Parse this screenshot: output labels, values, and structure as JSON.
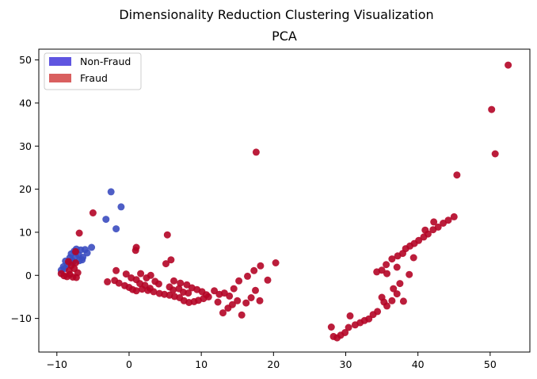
{
  "figure": {
    "suptitle": "Dimensionality Reduction Clustering Visualization"
  },
  "chart_data": {
    "type": "scatter",
    "title": "PCA",
    "xlabel": "",
    "ylabel": "",
    "xlim": [
      -12.5,
      55.5
    ],
    "ylim": [
      -17.8,
      52.5
    ],
    "xticks": [
      -10,
      0,
      10,
      20,
      30,
      40,
      50
    ],
    "yticks": [
      -10,
      0,
      10,
      20,
      30,
      40,
      50
    ],
    "grid": false,
    "legend": {
      "placement": "top-left"
    },
    "series": [
      {
        "name": "Non-Fraud",
        "color": "#3b4cc0",
        "legend_color": "#5f55e0",
        "points": [
          [
            -9.4,
            1.2
          ],
          [
            -9.1,
            2.0
          ],
          [
            -8.8,
            3.3
          ],
          [
            -8.5,
            2.6
          ],
          [
            -8.2,
            4.1
          ],
          [
            -7.9,
            3.5
          ],
          [
            -7.6,
            5.6
          ],
          [
            -7.3,
            6.1
          ],
          [
            -7.0,
            4.8
          ],
          [
            -6.7,
            5.9
          ],
          [
            -6.4,
            4.2
          ],
          [
            -6.1,
            6.0
          ],
          [
            -5.8,
            5.2
          ],
          [
            -6.5,
            3.6
          ],
          [
            -7.4,
            4.4
          ],
          [
            -8.0,
            5.0
          ],
          [
            -7.8,
            3.0
          ],
          [
            -8.9,
            1.6
          ],
          [
            -5.2,
            6.5
          ],
          [
            -6.9,
            3.4
          ],
          [
            -3.2,
            13.0
          ],
          [
            -2.5,
            19.4
          ],
          [
            -1.1,
            15.9
          ],
          [
            -1.8,
            10.8
          ]
        ]
      },
      {
        "name": "Fraud",
        "color": "#b40426",
        "legend_color": "#d95f5f",
        "points": [
          [
            52.5,
            48.8
          ],
          [
            50.2,
            38.5
          ],
          [
            50.7,
            28.2
          ],
          [
            17.6,
            28.6
          ],
          [
            45.4,
            23.3
          ],
          [
            -5.0,
            14.5
          ],
          [
            -6.9,
            9.8
          ],
          [
            5.3,
            9.4
          ],
          [
            -7.4,
            5.5
          ],
          [
            -9.4,
            0.4
          ],
          [
            -9.0,
            -0.1
          ],
          [
            -8.6,
            -0.3
          ],
          [
            -8.2,
            0.2
          ],
          [
            -7.8,
            -0.4
          ],
          [
            -7.3,
            -0.5
          ],
          [
            -8.3,
            1.1
          ],
          [
            -7.6,
            1.6
          ],
          [
            -8.0,
            2.3
          ],
          [
            -7.4,
            2.9
          ],
          [
            -8.4,
            3.2
          ],
          [
            -7.1,
            0.6
          ],
          [
            -3.0,
            -1.5
          ],
          [
            -2.0,
            -1.2
          ],
          [
            -1.4,
            -1.8
          ],
          [
            -0.6,
            -2.4
          ],
          [
            0.0,
            -2.8
          ],
          [
            0.5,
            -3.3
          ],
          [
            1.0,
            -3.6
          ],
          [
            -1.8,
            1.1
          ],
          [
            -0.4,
            0.3
          ],
          [
            0.3,
            -0.6
          ],
          [
            1.0,
            -1.0
          ],
          [
            1.5,
            -1.9
          ],
          [
            2.2,
            -2.3
          ],
          [
            2.9,
            -3.0
          ],
          [
            0.9,
            5.8
          ],
          [
            1.0,
            6.5
          ],
          [
            1.6,
            0.4
          ],
          [
            2.4,
            -0.6
          ],
          [
            3.0,
            0.0
          ],
          [
            3.6,
            -1.4
          ],
          [
            4.1,
            -2.0
          ],
          [
            1.8,
            -3.2
          ],
          [
            2.6,
            -3.5
          ],
          [
            3.4,
            -3.8
          ],
          [
            4.2,
            -4.2
          ],
          [
            4.9,
            -4.4
          ],
          [
            5.6,
            -4.6
          ],
          [
            6.3,
            -4.9
          ],
          [
            5.1,
            2.7
          ],
          [
            5.8,
            3.6
          ],
          [
            5.6,
            -2.7
          ],
          [
            6.1,
            -3.4
          ],
          [
            6.9,
            -3.1
          ],
          [
            7.5,
            -3.9
          ],
          [
            8.2,
            -4.1
          ],
          [
            6.2,
            -1.3
          ],
          [
            7.1,
            -1.8
          ],
          [
            8.0,
            -2.2
          ],
          [
            8.7,
            -2.9
          ],
          [
            9.4,
            -3.3
          ],
          [
            10.1,
            -3.8
          ],
          [
            10.7,
            -4.5
          ],
          [
            7.0,
            -5.2
          ],
          [
            7.6,
            -5.9
          ],
          [
            8.3,
            -6.3
          ],
          [
            9.0,
            -6.1
          ],
          [
            9.6,
            -5.8
          ],
          [
            10.3,
            -5.4
          ],
          [
            11.0,
            -5.0
          ],
          [
            11.8,
            -3.6
          ],
          [
            12.5,
            -4.4
          ],
          [
            13.2,
            -4.1
          ],
          [
            13.9,
            -4.8
          ],
          [
            14.5,
            -3.1
          ],
          [
            15.2,
            -1.3
          ],
          [
            12.3,
            -6.2
          ],
          [
            13.0,
            -8.7
          ],
          [
            13.7,
            -7.6
          ],
          [
            14.3,
            -6.8
          ],
          [
            15.0,
            -5.9
          ],
          [
            15.6,
            -9.2
          ],
          [
            16.2,
            -6.4
          ],
          [
            16.9,
            -5.2
          ],
          [
            17.5,
            -3.5
          ],
          [
            18.1,
            -5.9
          ],
          [
            16.4,
            -0.2
          ],
          [
            17.3,
            1.1
          ],
          [
            18.2,
            2.2
          ],
          [
            20.3,
            2.9
          ],
          [
            19.2,
            -1.1
          ],
          [
            28.0,
            -12.0
          ],
          [
            28.3,
            -14.2
          ],
          [
            28.8,
            -14.5
          ],
          [
            29.3,
            -13.9
          ],
          [
            29.9,
            -13.3
          ],
          [
            30.4,
            -12.1
          ],
          [
            30.6,
            -9.4
          ],
          [
            31.3,
            -11.5
          ],
          [
            32.0,
            -11.0
          ],
          [
            32.6,
            -10.5
          ],
          [
            33.2,
            -10.1
          ],
          [
            33.8,
            -9.1
          ],
          [
            34.4,
            -8.4
          ],
          [
            35.0,
            -5.1
          ],
          [
            35.3,
            -6.2
          ],
          [
            35.7,
            -7.1
          ],
          [
            36.4,
            -5.9
          ],
          [
            37.1,
            -4.3
          ],
          [
            34.3,
            0.8
          ],
          [
            35.0,
            1.2
          ],
          [
            35.7,
            0.4
          ],
          [
            35.6,
            2.5
          ],
          [
            36.4,
            3.8
          ],
          [
            37.2,
            4.5
          ],
          [
            37.9,
            5.1
          ],
          [
            36.6,
            -3.1
          ],
          [
            37.5,
            -1.9
          ],
          [
            38.0,
            -6.0
          ],
          [
            38.8,
            0.2
          ],
          [
            37.1,
            1.9
          ],
          [
            38.3,
            6.2
          ],
          [
            38.9,
            6.8
          ],
          [
            39.5,
            7.4
          ],
          [
            40.1,
            8.1
          ],
          [
            40.8,
            8.9
          ],
          [
            41.4,
            9.6
          ],
          [
            42.1,
            10.6
          ],
          [
            42.8,
            11.2
          ],
          [
            43.5,
            12.1
          ],
          [
            44.2,
            12.8
          ],
          [
            45.0,
            13.6
          ],
          [
            42.2,
            12.4
          ],
          [
            41.0,
            10.5
          ],
          [
            39.4,
            4.1
          ]
        ]
      }
    ]
  }
}
